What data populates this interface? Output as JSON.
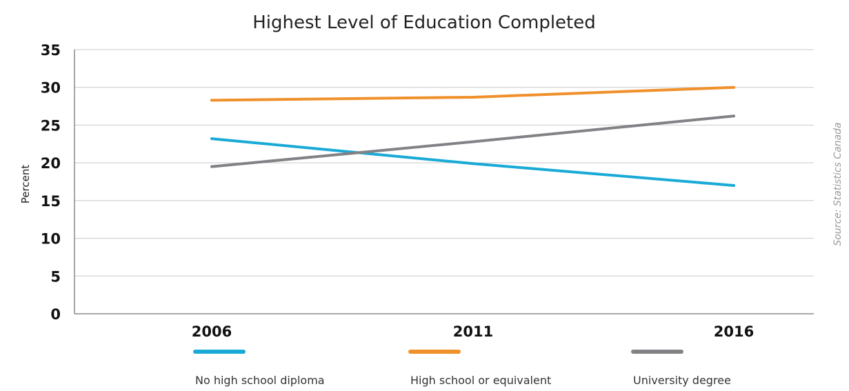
{
  "chart_data": {
    "type": "line",
    "title": "Highest Level of Education Completed",
    "xlabel": "",
    "ylabel": "Percent",
    "categories": [
      "2006",
      "2011",
      "2016"
    ],
    "ylim": [
      0,
      35
    ],
    "yticks": [
      0,
      5,
      10,
      15,
      20,
      25,
      30,
      35
    ],
    "grid": true,
    "legend_position": "bottom",
    "source": "Source: Statistics Canada",
    "series": [
      {
        "name": "No high school diploma",
        "color": "#1aaad6",
        "values": [
          23.2,
          19.9,
          17.0
        ]
      },
      {
        "name": "High school or equivalent",
        "color": "#f0902a",
        "values": [
          28.3,
          28.7,
          30.0
        ]
      },
      {
        "name": "University degree",
        "color": "#808285",
        "values": [
          19.5,
          22.8,
          26.2
        ]
      }
    ]
  }
}
